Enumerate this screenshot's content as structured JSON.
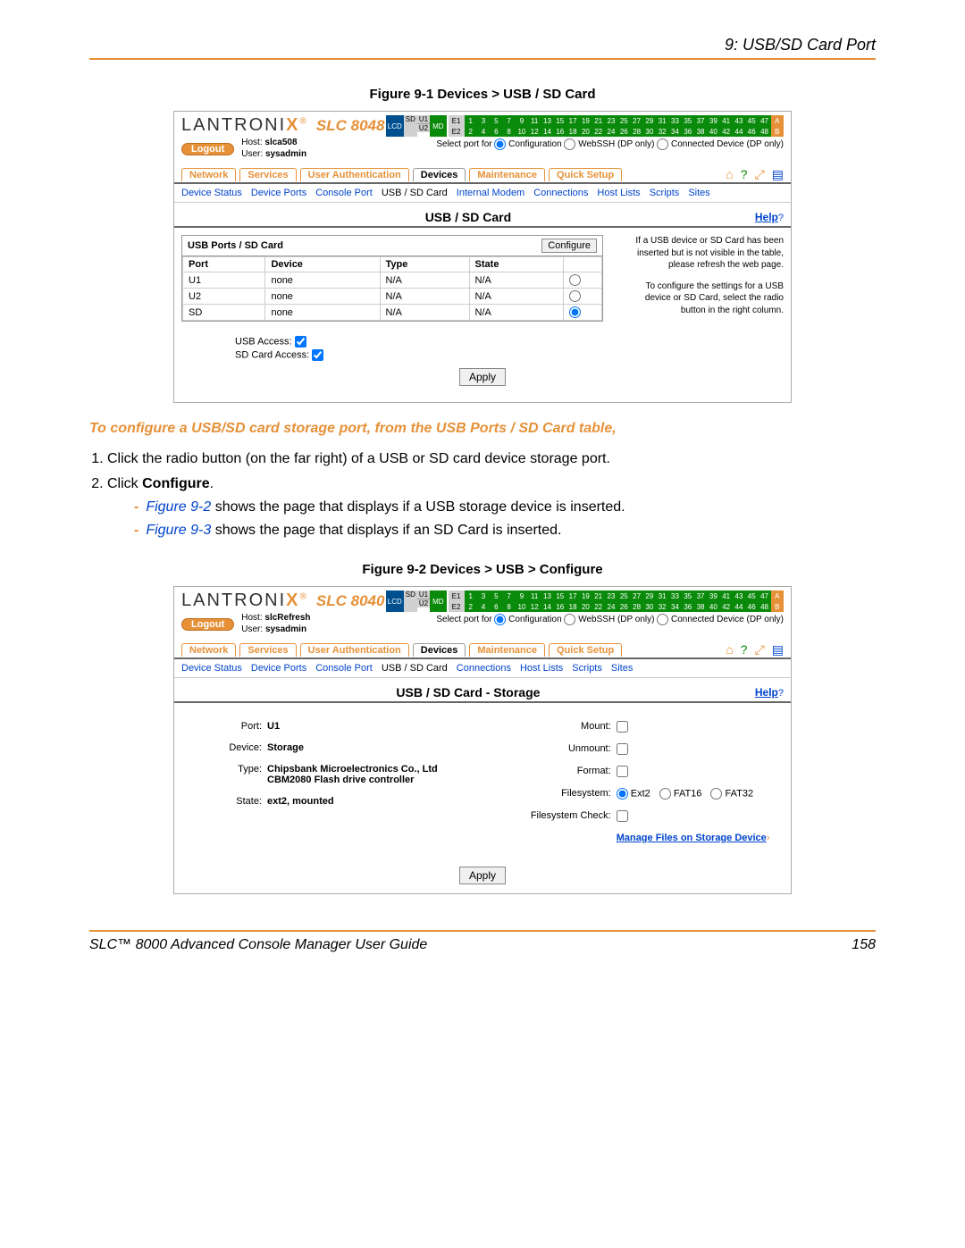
{
  "header": {
    "chapter": "9: USB/SD Card Port"
  },
  "fig1": {
    "caption": "Figure 9-1  Devices > USB / SD Card",
    "product": "SLC 8048",
    "host": "slca508",
    "user": "sysadmin",
    "logout": "Logout",
    "select_port_label": "Select port for",
    "select_port_options": [
      "Configuration",
      "WebSSH (DP only)",
      "Connected Device (DP only)"
    ],
    "tabs": [
      "Network",
      "Services",
      "User Authentication",
      "Devices",
      "Maintenance",
      "Quick Setup"
    ],
    "active_tab": "Devices",
    "subnav": [
      "Device Status",
      "Device Ports",
      "Console Port",
      "USB / SD Card",
      "Internal Modem",
      "Connections",
      "Host Lists",
      "Scripts",
      "Sites"
    ],
    "section_title": "USB / SD Card",
    "help": "Help",
    "table_title": "USB Ports / SD Card",
    "configure": "Configure",
    "columns": [
      "Port",
      "Device",
      "Type",
      "State"
    ],
    "rows": [
      {
        "port": "U1",
        "device": "none",
        "type": "N/A",
        "state": "N/A",
        "selected": false
      },
      {
        "port": "U2",
        "device": "none",
        "type": "N/A",
        "state": "N/A",
        "selected": false
      },
      {
        "port": "SD",
        "device": "none",
        "type": "N/A",
        "state": "N/A",
        "selected": true
      }
    ],
    "note1": "If a USB device or SD Card has been inserted but is not visible in the table, please refresh the web page.",
    "note2": "To configure the settings for a USB device or SD Card, select the radio button in the right column.",
    "usb_access": "USB Access:",
    "sd_access": "SD Card Access:",
    "apply": "Apply"
  },
  "instruction_heading": "To configure a USB/SD card storage port, from the USB Ports / SD Card table,",
  "steps": {
    "s1": "Click the radio button (on the far right) of a USB or SD card device storage port.",
    "s2a": "Click ",
    "s2b": "Configure",
    "s2c": ".",
    "sub1a": "Figure 9-2",
    "sub1b": " shows the page that displays if a USB storage device is inserted.",
    "sub2a": "Figure 9-3",
    "sub2b": " shows the page that displays if an SD Card is inserted."
  },
  "fig2": {
    "caption": "Figure 9-2  Devices > USB > Configure",
    "product": "SLC 8040",
    "host": "slcRefresh",
    "user": "sysadmin",
    "logout": "Logout",
    "select_port_label": "Select port for",
    "select_port_options": [
      "Configuration",
      "WebSSH (DP only)",
      "Connected Device (DP only)"
    ],
    "tabs": [
      "Network",
      "Services",
      "User Authentication",
      "Devices",
      "Maintenance",
      "Quick Setup"
    ],
    "active_tab": "Devices",
    "subnav": [
      "Device Status",
      "Device Ports",
      "Console Port",
      "USB / SD Card",
      "Connections",
      "Host Lists",
      "Scripts",
      "Sites"
    ],
    "section_title": "USB / SD Card - Storage",
    "help": "Help",
    "left": {
      "port_lbl": "Port:",
      "port": "U1",
      "device_lbl": "Device:",
      "device": "Storage",
      "type_lbl": "Type:",
      "type": "Chipsbank Microelectronics Co., Ltd CBM2080 Flash drive controller",
      "state_lbl": "State:",
      "state": "ext2, mounted"
    },
    "right": {
      "mount": "Mount:",
      "unmount": "Unmount:",
      "format": "Format:",
      "fs_lbl": "Filesystem:",
      "fs_opts": [
        "Ext2",
        "FAT16",
        "FAT32"
      ],
      "fsck": "Filesystem Check:",
      "manage": "Manage Files on Storage Device"
    },
    "apply": "Apply"
  },
  "footer": {
    "title": "SLC™ 8000 Advanced Console Manager User Guide",
    "page": "158"
  },
  "ports": {
    "row1": [
      1,
      3,
      5,
      7,
      9,
      11,
      13,
      15,
      17,
      19,
      21,
      23,
      25,
      27,
      29,
      31,
      33,
      35,
      37,
      39,
      41,
      43,
      45,
      47
    ],
    "row2": [
      2,
      4,
      6,
      8,
      10,
      12,
      14,
      16,
      18,
      20,
      22,
      24,
      26,
      28,
      30,
      32,
      34,
      36,
      38,
      40,
      42,
      44,
      46,
      48
    ]
  }
}
